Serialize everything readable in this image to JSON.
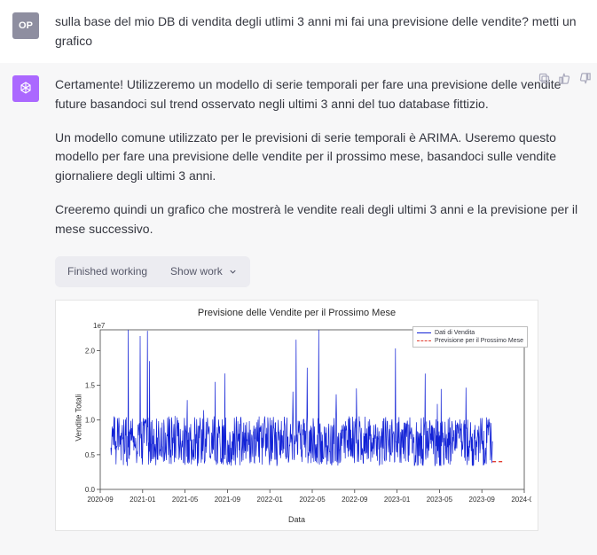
{
  "user": {
    "avatar_label": "OP",
    "text": "sulla base del mio DB di vendita degli utlimi 3 anni mi fai una previsione delle vendite? metti un grafico"
  },
  "assistant": {
    "paragraphs": [
      "Certamente! Utilizzeremo un modello di serie temporali per fare una previsione delle vendite future basandoci sul trend osservato negli ultimi 3 anni del tuo database fittizio.",
      "Un modello comune utilizzato per le previsioni di serie temporali è ARIMA. Useremo questo modello per fare una previsione delle vendite per il prossimo mese, basandoci sulle vendite giornaliere degli ultimi 3 anni.",
      "Creeremo quindi un grafico che mostrerà le vendite reali degli ultimi 3 anni e la previsione per il mese successivo."
    ],
    "work_pill": {
      "status": "Finished working",
      "toggle": "Show work"
    }
  },
  "chart": {
    "type": "line",
    "title": "Previsione delle Vendite per il Prossimo Mese",
    "xlabel": "Data",
    "ylabel": "Vendite Totali",
    "y_exponent": "1e7",
    "xlim": [
      "2020-09",
      "2024-01"
    ],
    "ylim": [
      0.0,
      2.3
    ],
    "yticks": [
      0.0,
      0.5,
      1.0,
      1.5,
      2.0
    ],
    "xticks": [
      "2020-09",
      "2021-01",
      "2021-05",
      "2021-09",
      "2022-01",
      "2022-05",
      "2022-09",
      "2023-01",
      "2023-05",
      "2023-09",
      "2024-01"
    ],
    "series_color": "#1222d6",
    "forecast_color": "#e23b2e",
    "grid_color": "#ffffff",
    "background_color": "#ffffff",
    "axis_color": "#444444",
    "tick_fontsize": 8,
    "title_fontsize": 11,
    "line_width": 0.7,
    "legend": {
      "entries": [
        "Dati di Vendita",
        "Previsione per il Prossimo Mese"
      ],
      "position": "upper right"
    },
    "data_start": "2020-10",
    "data_end": "2023-10",
    "num_points": 1095,
    "value_mean": 0.55,
    "value_spread": 0.45,
    "spikes": [
      0.9,
      1.1,
      1.3,
      1.5,
      1.7,
      1.9,
      2.3
    ],
    "seed": 73,
    "forecast": {
      "start": "2023-10",
      "end": "2023-11",
      "level": 0.4
    }
  }
}
